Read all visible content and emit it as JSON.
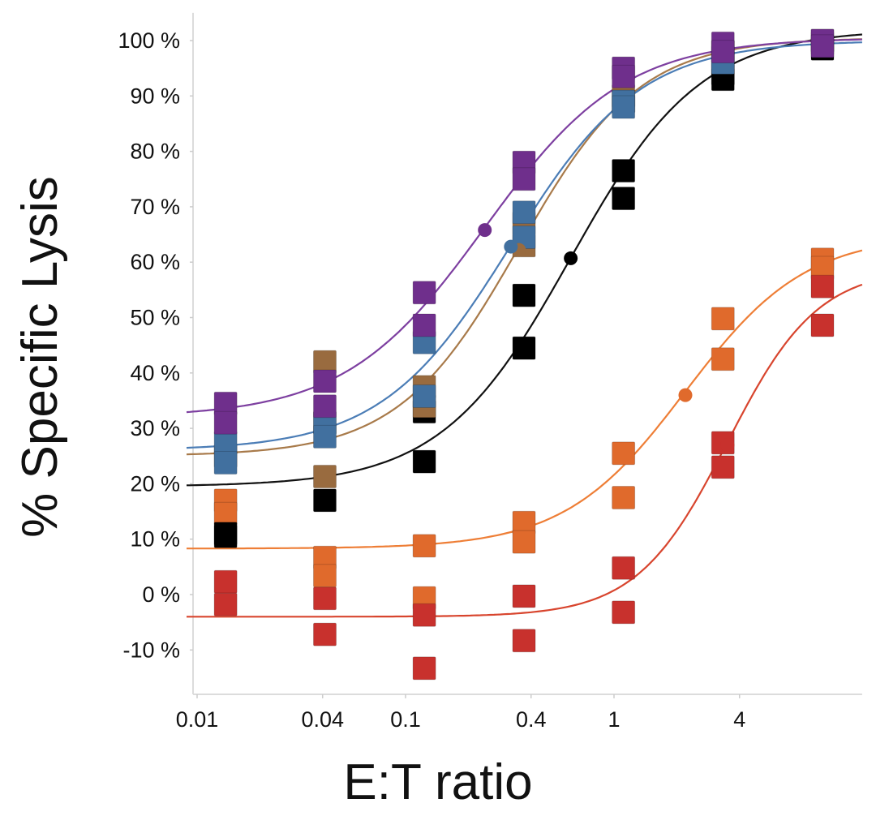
{
  "chart_data": {
    "type": "scatter",
    "title": "",
    "xlabel": "E:T ratio",
    "ylabel": "% Specific Lysis",
    "xscale": "log",
    "xlim": [
      0.0085,
      15.5
    ],
    "ylim": [
      -18,
      105
    ],
    "grid": false,
    "legend": "none",
    "x_ticks": [
      {
        "value": 0.01,
        "label": "0.01"
      },
      {
        "value": 0.04,
        "label": "0.04"
      },
      {
        "value": 0.1,
        "label": "0.1"
      },
      {
        "value": 0.4,
        "label": "0.4"
      },
      {
        "value": 1,
        "label": "1"
      },
      {
        "value": 4,
        "label": "4"
      }
    ],
    "y_ticks": [
      {
        "value": 100,
        "label": "100 %"
      },
      {
        "value": 90,
        "label": "90 %"
      },
      {
        "value": 80,
        "label": "80 %"
      },
      {
        "value": 70,
        "label": "70 %"
      },
      {
        "value": 60,
        "label": "60 %"
      },
      {
        "value": 50,
        "label": "50 %"
      },
      {
        "value": 40,
        "label": "40 %"
      },
      {
        "value": 30,
        "label": "30 %"
      },
      {
        "value": 20,
        "label": "20 %"
      },
      {
        "value": 10,
        "label": "10 %"
      },
      {
        "value": 0,
        "label": "0 %"
      },
      {
        "value": -10,
        "label": "-10 %"
      }
    ],
    "x": [
      0.0137,
      0.041,
      0.123,
      0.37,
      1.11,
      3.33,
      10
    ],
    "series": [
      {
        "color": "#e06a2c",
        "line_color": "#ee7e36",
        "points": [
          [
            0.0137,
            17
          ],
          [
            0.0137,
            14.6
          ],
          [
            0.041,
            6.7
          ],
          [
            0.041,
            3.4
          ],
          [
            0.123,
            8.8
          ],
          [
            0.123,
            -0.6
          ],
          [
            0.37,
            13
          ],
          [
            0.37,
            9.5
          ],
          [
            1.11,
            25.5
          ],
          [
            1.11,
            17.5
          ],
          [
            3.33,
            49.8
          ],
          [
            3.33,
            42.5
          ],
          [
            10,
            60.5
          ],
          [
            10,
            59
          ]
        ],
        "fit": {
          "bottom": 8.3,
          "top": 65,
          "ec50": 2.2,
          "hill": 1.5
        },
        "ec50_point": [
          2.2,
          36
        ]
      },
      {
        "color": "#c8312d",
        "line_color": "#d8452e",
        "points": [
          [
            0.0137,
            2.3
          ],
          [
            0.0137,
            -1.8
          ],
          [
            0.041,
            -0.7
          ],
          [
            0.041,
            -7.2
          ],
          [
            0.123,
            -3.7
          ],
          [
            0.123,
            -13.3
          ],
          [
            0.37,
            -0.3
          ],
          [
            0.37,
            -8.3
          ],
          [
            1.11,
            4.8
          ],
          [
            1.11,
            -3.2
          ],
          [
            3.33,
            27.4
          ],
          [
            3.33,
            23
          ],
          [
            10,
            55.6
          ],
          [
            10,
            48.6
          ]
        ],
        "fit": {
          "bottom": -4,
          "top": 59,
          "ec50": 3.5,
          "hill": 2
        },
        "ec50_point": [
          3.5,
          27
        ]
      },
      {
        "color": "#000000",
        "line_color": "#111111",
        "points": [
          [
            0.0137,
            11
          ],
          [
            0.0137,
            10.5
          ],
          [
            0.041,
            31
          ],
          [
            0.041,
            17
          ],
          [
            0.123,
            33
          ],
          [
            0.123,
            24
          ],
          [
            0.37,
            54
          ],
          [
            0.37,
            44.5
          ],
          [
            1.11,
            76.5
          ],
          [
            1.11,
            71.5
          ],
          [
            3.33,
            94
          ],
          [
            3.33,
            93
          ],
          [
            10,
            98.5
          ]
        ],
        "fit": {
          "bottom": 19.5,
          "top": 102,
          "ec50": 0.62,
          "hill": 1.4
        },
        "ec50_point": [
          0.62,
          60.7
        ]
      },
      {
        "color": "#996b3f",
        "line_color": "#a87a4a",
        "points": [
          [
            0.0137,
            25
          ],
          [
            0.041,
            42
          ],
          [
            0.041,
            21.3
          ],
          [
            0.123,
            37.5
          ],
          [
            0.123,
            34
          ],
          [
            0.37,
            67
          ],
          [
            0.37,
            63
          ],
          [
            1.11,
            90
          ],
          [
            1.11,
            89
          ],
          [
            3.33,
            98
          ],
          [
            10,
            100
          ]
        ],
        "fit": {
          "bottom": 25,
          "top": 100.5,
          "ec50": 0.35,
          "hill": 1.5
        },
        "ec50_point": [
          0.35,
          62.2
        ]
      },
      {
        "color": "#41709f",
        "line_color": "#4b7db6",
        "points": [
          [
            0.0137,
            27.4
          ],
          [
            0.0137,
            23.8
          ],
          [
            0.041,
            31
          ],
          [
            0.041,
            28.5
          ],
          [
            0.123,
            45.5
          ],
          [
            0.123,
            35.8
          ],
          [
            0.37,
            69
          ],
          [
            0.37,
            64.5
          ],
          [
            1.11,
            89
          ],
          [
            1.11,
            88
          ],
          [
            3.33,
            97
          ],
          [
            3.33,
            96
          ],
          [
            10,
            99.5
          ]
        ],
        "fit": {
          "bottom": 26,
          "top": 100,
          "ec50": 0.32,
          "hill": 1.4
        },
        "ec50_point": [
          0.32,
          62.8
        ]
      },
      {
        "color": "#6f2f8c",
        "line_color": "#7d3fa0",
        "points": [
          [
            0.0137,
            34.5
          ],
          [
            0.0137,
            31
          ],
          [
            0.041,
            38.5
          ],
          [
            0.041,
            34
          ],
          [
            0.123,
            54.5
          ],
          [
            0.123,
            48.6
          ],
          [
            0.37,
            78
          ],
          [
            0.37,
            75
          ],
          [
            1.11,
            95
          ],
          [
            1.11,
            93.5
          ],
          [
            3.33,
            99.5
          ],
          [
            3.33,
            98
          ],
          [
            10,
            100
          ],
          [
            10,
            99
          ]
        ],
        "fit": {
          "bottom": 32,
          "top": 100.5,
          "ec50": 0.24,
          "hill": 1.3
        },
        "ec50_point": [
          0.24,
          65.8
        ]
      }
    ]
  }
}
